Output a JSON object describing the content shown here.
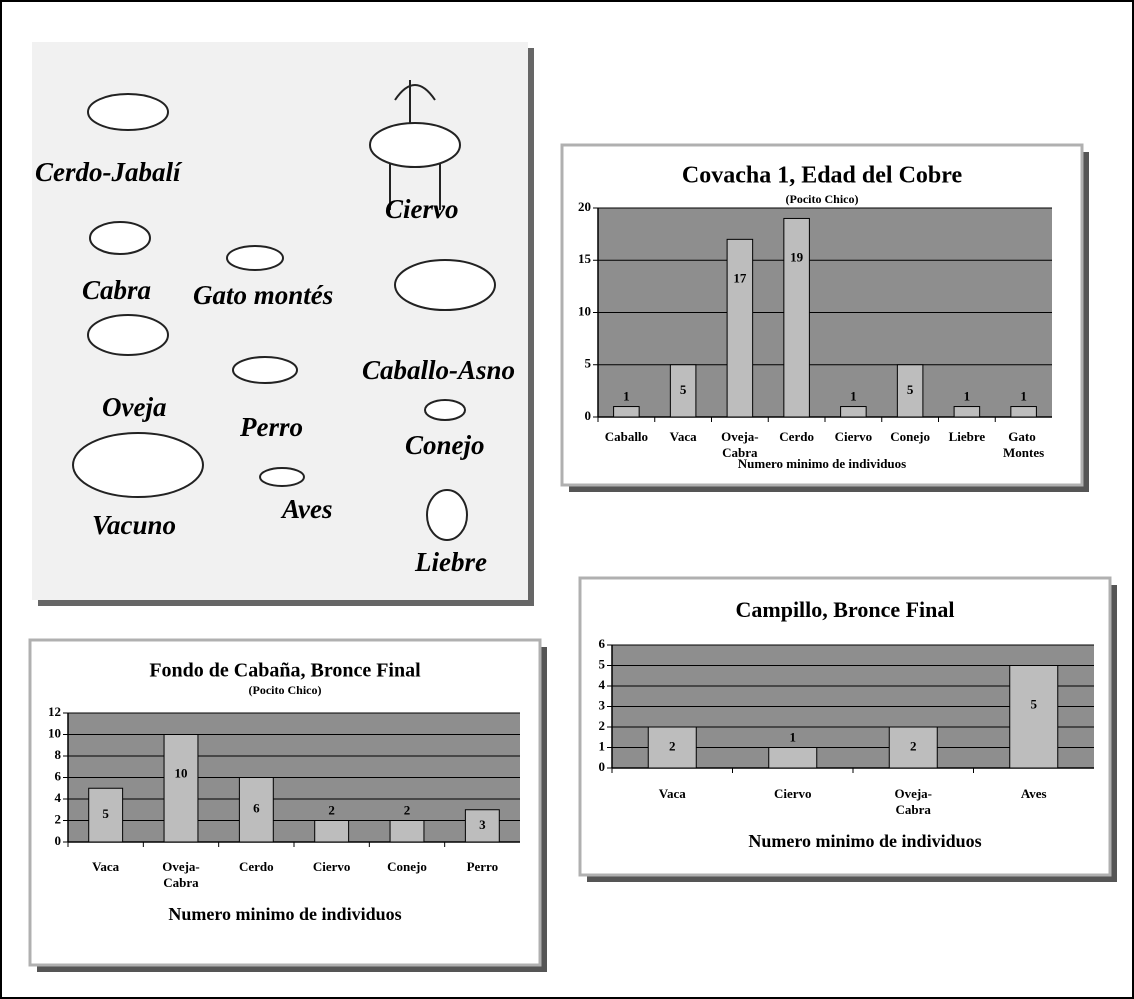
{
  "illustration": {
    "labels": [
      "Cerdo-Jabalí",
      "Ciervo",
      "Cabra",
      "Gato montés",
      "Caballo-Asno",
      "Oveja",
      "Perro",
      "Conejo",
      "Aves",
      "Vacuno",
      "Liebre"
    ]
  },
  "chart_data": [
    {
      "type": "bar",
      "title": "Covacha 1, Edad del Cobre",
      "subtitle": "(Pocito Chico)",
      "x_label": "Numero minimo de individuos",
      "categories": [
        "Caballo",
        "Vaca",
        "Oveja-Cabra",
        "Cerdo",
        "Ciervo",
        "Conejo",
        "Liebre",
        "Gato Montes"
      ],
      "values": [
        1,
        5,
        17,
        19,
        1,
        5,
        1,
        1
      ],
      "color": "#bdbdbd",
      "ylim": [
        0,
        20
      ],
      "yticks": [
        0,
        5,
        10,
        15,
        20
      ],
      "grid": true
    },
    {
      "type": "bar",
      "title": "Fondo de Cabaña, Bronce Final",
      "subtitle": "(Pocito Chico)",
      "x_label": "Numero minimo de individuos",
      "categories": [
        "Vaca",
        "Oveja-Cabra",
        "Cerdo",
        "Ciervo",
        "Conejo",
        "Perro"
      ],
      "values": [
        5,
        10,
        6,
        2,
        2,
        3
      ],
      "color": "#bdbdbd",
      "ylim": [
        0,
        12
      ],
      "yticks": [
        0,
        2,
        4,
        6,
        8,
        10,
        12
      ],
      "grid": true
    },
    {
      "type": "bar",
      "title": "Campillo, Bronce Final",
      "x_label": "Numero minimo de individuos",
      "categories": [
        "Vaca",
        "Ciervo",
        "Oveja-Cabra",
        "Aves"
      ],
      "values": [
        2,
        1,
        2,
        5
      ],
      "color": "#bdbdbd",
      "ylim": [
        0,
        6
      ],
      "yticks": [
        0,
        1,
        2,
        3,
        4,
        5,
        6
      ],
      "grid": true
    }
  ]
}
